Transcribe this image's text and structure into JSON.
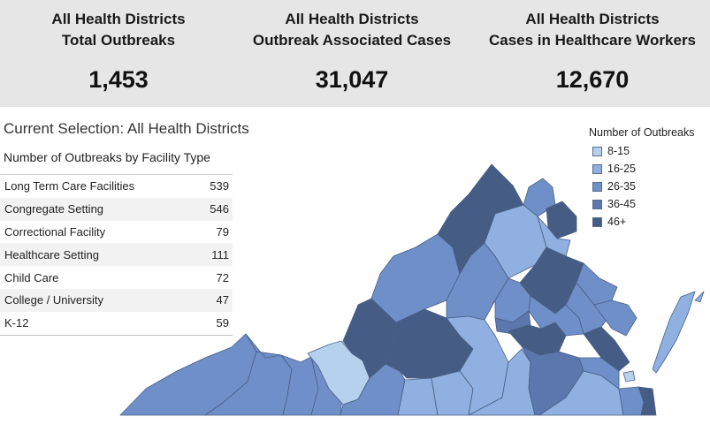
{
  "kpis": [
    {
      "line1": "All Health Districts",
      "line2": "Total Outbreaks",
      "value": "1,453"
    },
    {
      "line1": "All Health Districts",
      "line2": "Outbreak Associated Cases",
      "value": "31,047"
    },
    {
      "line1": "All Health Districts",
      "line2": "Cases in Healthcare Workers",
      "value": "12,670"
    }
  ],
  "selection": "Current Selection: All Health Districts",
  "table": {
    "title": "Number of Outbreaks by Facility Type",
    "rows": [
      {
        "label": "Long Term Care Facilities",
        "value": "539"
      },
      {
        "label": "Congregate Setting",
        "value": "546"
      },
      {
        "label": "Correctional Facility",
        "value": "79"
      },
      {
        "label": "Healthcare Setting",
        "value": "111"
      },
      {
        "label": "Child Care",
        "value": "72"
      },
      {
        "label": "College / University",
        "value": "47"
      },
      {
        "label": "K-12",
        "value": "59"
      }
    ]
  },
  "legend": {
    "title": "Number of Outbreaks",
    "items": [
      {
        "label": "8-15",
        "color": "#b6d1ee"
      },
      {
        "label": "16-25",
        "color": "#8fb0e0"
      },
      {
        "label": "26-35",
        "color": "#6f8fc9"
      },
      {
        "label": "36-45",
        "color": "#5b77ad"
      },
      {
        "label": "46+",
        "color": "#455c84"
      }
    ]
  }
}
